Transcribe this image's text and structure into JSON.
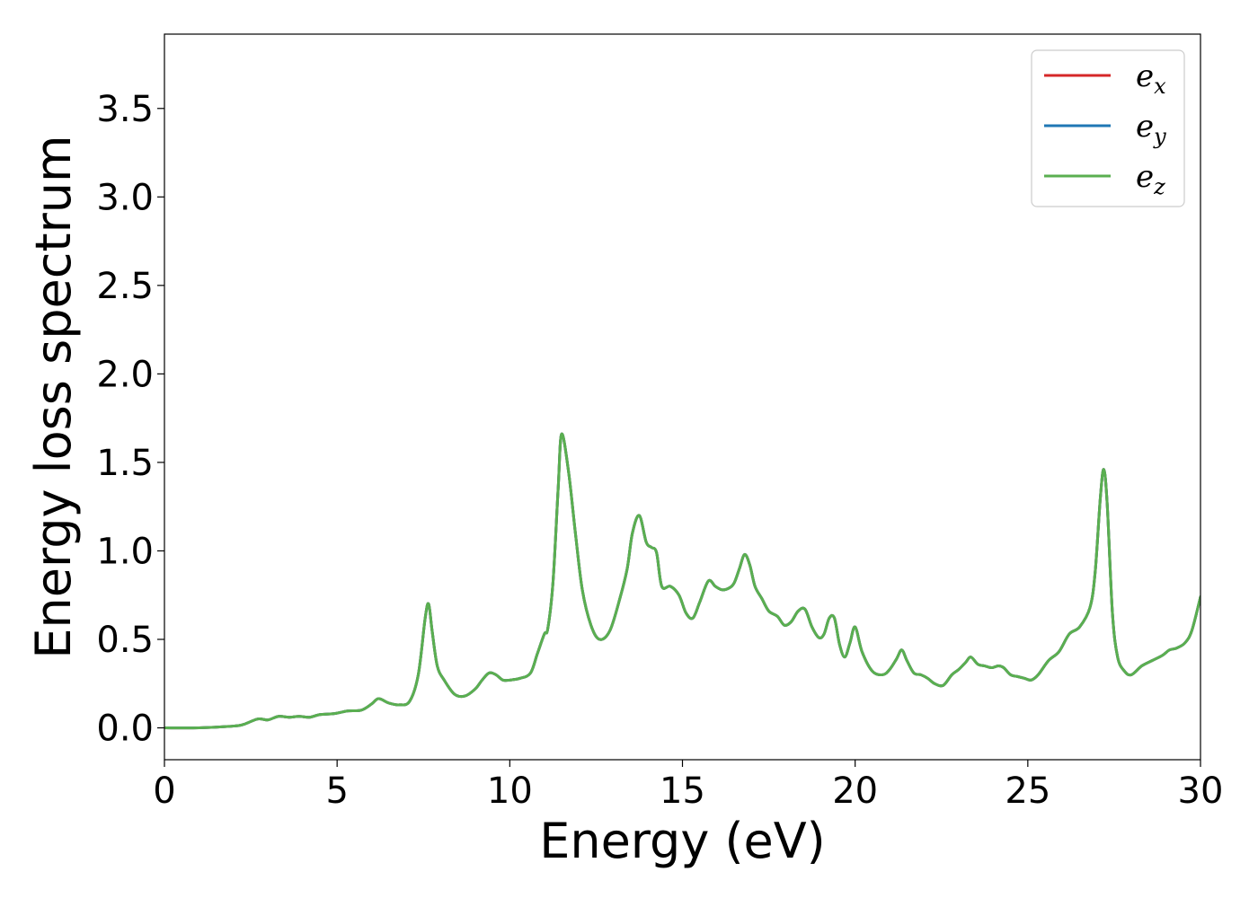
{
  "chart_data": {
    "type": "line",
    "title": "",
    "xlabel": "Energy (eV)",
    "ylabel": "Energy loss spectrum",
    "xlim": [
      0,
      30
    ],
    "ylim": [
      -0.18,
      3.92
    ],
    "xticks": [
      "0",
      "5",
      "10",
      "15",
      "20",
      "25",
      "30"
    ],
    "yticks": [
      "0.0",
      "0.5",
      "1.0",
      "1.5",
      "2.0",
      "2.5",
      "3.0",
      "3.5"
    ],
    "grid": false,
    "legend_position": "top-right",
    "series": [
      {
        "name": "e_x",
        "base": "e",
        "sub": "x",
        "color": "#d62728",
        "x": [
          0,
          1,
          2,
          2.3,
          2.7,
          3.0,
          3.3,
          3.6,
          3.9,
          4.2,
          4.5,
          4.9,
          5.3,
          5.7,
          6.0,
          6.2,
          6.5,
          6.8,
          7.1,
          7.35,
          7.55,
          7.65,
          7.75,
          7.9,
          8.1,
          8.4,
          8.7,
          9.0,
          9.2,
          9.4,
          9.6,
          9.8,
          10.0,
          10.3,
          10.6,
          10.8,
          11.0,
          11.1,
          11.25,
          11.4,
          11.5,
          11.7,
          11.9,
          12.1,
          12.35,
          12.6,
          12.9,
          13.2,
          13.4,
          13.55,
          13.75,
          13.95,
          14.1,
          14.25,
          14.4,
          14.65,
          14.9,
          15.1,
          15.3,
          15.5,
          15.75,
          15.95,
          16.15,
          16.35,
          16.5,
          16.65,
          16.8,
          16.95,
          17.1,
          17.3,
          17.5,
          17.75,
          17.95,
          18.15,
          18.35,
          18.55,
          18.75,
          18.95,
          19.1,
          19.25,
          19.4,
          19.55,
          19.7,
          19.85,
          20.0,
          20.2,
          20.5,
          20.8,
          21.0,
          21.2,
          21.35,
          21.5,
          21.7,
          21.9,
          22.1,
          22.3,
          22.55,
          22.8,
          23.0,
          23.2,
          23.35,
          23.55,
          23.75,
          23.95,
          24.15,
          24.3,
          24.5,
          24.7,
          24.9,
          25.1,
          25.3,
          25.6,
          25.9,
          26.2,
          26.5,
          26.8,
          26.95,
          27.1,
          27.2,
          27.3,
          27.45,
          27.6,
          27.8,
          28.0,
          28.3,
          28.6,
          28.9,
          29.1,
          29.3,
          29.55,
          29.75,
          30.0
        ],
        "y": [
          0,
          0,
          0.01,
          0.02,
          0.05,
          0.045,
          0.065,
          0.06,
          0.065,
          0.06,
          0.075,
          0.08,
          0.095,
          0.1,
          0.135,
          0.165,
          0.14,
          0.13,
          0.15,
          0.3,
          0.62,
          0.7,
          0.55,
          0.35,
          0.27,
          0.19,
          0.18,
          0.22,
          0.27,
          0.31,
          0.3,
          0.27,
          0.27,
          0.28,
          0.31,
          0.42,
          0.53,
          0.56,
          0.82,
          1.35,
          1.66,
          1.45,
          1.1,
          0.78,
          0.58,
          0.5,
          0.55,
          0.74,
          0.9,
          1.1,
          1.2,
          1.05,
          1.02,
          0.99,
          0.8,
          0.8,
          0.75,
          0.65,
          0.62,
          0.71,
          0.83,
          0.8,
          0.78,
          0.79,
          0.82,
          0.9,
          0.98,
          0.92,
          0.8,
          0.73,
          0.66,
          0.63,
          0.58,
          0.6,
          0.66,
          0.67,
          0.57,
          0.51,
          0.53,
          0.62,
          0.62,
          0.47,
          0.4,
          0.48,
          0.57,
          0.43,
          0.32,
          0.3,
          0.33,
          0.39,
          0.44,
          0.38,
          0.31,
          0.3,
          0.28,
          0.25,
          0.24,
          0.3,
          0.33,
          0.37,
          0.4,
          0.36,
          0.35,
          0.34,
          0.35,
          0.34,
          0.3,
          0.29,
          0.28,
          0.27,
          0.3,
          0.38,
          0.43,
          0.53,
          0.57,
          0.68,
          0.88,
          1.3,
          1.46,
          1.26,
          0.65,
          0.4,
          0.32,
          0.3,
          0.35,
          0.38,
          0.41,
          0.44,
          0.45,
          0.48,
          0.55,
          0.74
        ]
      },
      {
        "name": "e_y",
        "base": "e",
        "sub": "y",
        "color": "#1f77b4",
        "x": [
          0,
          1,
          2,
          2.3,
          2.7,
          3.0,
          3.3,
          3.6,
          3.9,
          4.2,
          4.5,
          4.9,
          5.3,
          5.7,
          6.0,
          6.2,
          6.5,
          6.8,
          7.1,
          7.35,
          7.55,
          7.65,
          7.75,
          7.9,
          8.1,
          8.4,
          8.7,
          9.0,
          9.2,
          9.4,
          9.6,
          9.8,
          10.0,
          10.3,
          10.6,
          10.8,
          11.0,
          11.1,
          11.25,
          11.4,
          11.5,
          11.7,
          11.9,
          12.1,
          12.35,
          12.6,
          12.9,
          13.2,
          13.4,
          13.55,
          13.75,
          13.95,
          14.1,
          14.25,
          14.4,
          14.65,
          14.9,
          15.1,
          15.3,
          15.5,
          15.75,
          15.95,
          16.15,
          16.35,
          16.5,
          16.65,
          16.8,
          16.95,
          17.1,
          17.3,
          17.5,
          17.75,
          17.95,
          18.15,
          18.35,
          18.55,
          18.75,
          18.95,
          19.1,
          19.25,
          19.4,
          19.55,
          19.7,
          19.85,
          20.0,
          20.2,
          20.5,
          20.8,
          21.0,
          21.2,
          21.35,
          21.5,
          21.7,
          21.9,
          22.1,
          22.3,
          22.55,
          22.8,
          23.0,
          23.2,
          23.35,
          23.55,
          23.75,
          23.95,
          24.15,
          24.3,
          24.5,
          24.7,
          24.9,
          25.1,
          25.3,
          25.6,
          25.9,
          26.2,
          26.5,
          26.8,
          26.95,
          27.1,
          27.2,
          27.3,
          27.45,
          27.6,
          27.8,
          28.0,
          28.3,
          28.6,
          28.9,
          29.1,
          29.3,
          29.55,
          29.75,
          30.0
        ],
        "y": [
          0,
          0,
          0.01,
          0.02,
          0.05,
          0.045,
          0.065,
          0.06,
          0.065,
          0.06,
          0.075,
          0.08,
          0.095,
          0.1,
          0.135,
          0.165,
          0.14,
          0.13,
          0.15,
          0.3,
          0.62,
          0.7,
          0.55,
          0.35,
          0.27,
          0.19,
          0.18,
          0.22,
          0.27,
          0.31,
          0.3,
          0.27,
          0.27,
          0.28,
          0.31,
          0.42,
          0.53,
          0.56,
          0.82,
          1.35,
          1.66,
          1.45,
          1.1,
          0.78,
          0.58,
          0.5,
          0.55,
          0.74,
          0.9,
          1.1,
          1.2,
          1.05,
          1.02,
          0.99,
          0.8,
          0.8,
          0.75,
          0.65,
          0.62,
          0.71,
          0.83,
          0.8,
          0.78,
          0.79,
          0.82,
          0.9,
          0.98,
          0.92,
          0.8,
          0.73,
          0.66,
          0.63,
          0.58,
          0.6,
          0.66,
          0.67,
          0.57,
          0.51,
          0.53,
          0.62,
          0.62,
          0.47,
          0.4,
          0.48,
          0.57,
          0.43,
          0.32,
          0.3,
          0.33,
          0.39,
          0.44,
          0.38,
          0.31,
          0.3,
          0.28,
          0.25,
          0.24,
          0.3,
          0.33,
          0.37,
          0.4,
          0.36,
          0.35,
          0.34,
          0.35,
          0.34,
          0.3,
          0.29,
          0.28,
          0.27,
          0.3,
          0.38,
          0.43,
          0.53,
          0.57,
          0.68,
          0.88,
          1.3,
          1.46,
          1.26,
          0.65,
          0.4,
          0.32,
          0.3,
          0.35,
          0.38,
          0.41,
          0.44,
          0.45,
          0.48,
          0.55,
          0.74
        ]
      },
      {
        "name": "e_z",
        "base": "e",
        "sub": "z",
        "color": "#5aaf50",
        "x": [
          0,
          1,
          2,
          2.3,
          2.7,
          3.0,
          3.3,
          3.6,
          3.9,
          4.2,
          4.5,
          4.9,
          5.3,
          5.7,
          6.0,
          6.2,
          6.5,
          6.8,
          7.1,
          7.35,
          7.55,
          7.65,
          7.75,
          7.9,
          8.1,
          8.4,
          8.7,
          9.0,
          9.2,
          9.4,
          9.6,
          9.8,
          10.0,
          10.3,
          10.6,
          10.8,
          11.0,
          11.1,
          11.25,
          11.4,
          11.5,
          11.7,
          11.9,
          12.1,
          12.35,
          12.6,
          12.9,
          13.2,
          13.4,
          13.55,
          13.75,
          13.95,
          14.1,
          14.25,
          14.4,
          14.65,
          14.9,
          15.1,
          15.3,
          15.5,
          15.75,
          15.95,
          16.15,
          16.35,
          16.5,
          16.65,
          16.8,
          16.95,
          17.1,
          17.3,
          17.5,
          17.75,
          17.95,
          18.15,
          18.35,
          18.55,
          18.75,
          18.95,
          19.1,
          19.25,
          19.4,
          19.55,
          19.7,
          19.85,
          20.0,
          20.2,
          20.5,
          20.8,
          21.0,
          21.2,
          21.35,
          21.5,
          21.7,
          21.9,
          22.1,
          22.3,
          22.55,
          22.8,
          23.0,
          23.2,
          23.35,
          23.55,
          23.75,
          23.95,
          24.15,
          24.3,
          24.5,
          24.7,
          24.9,
          25.1,
          25.3,
          25.6,
          25.9,
          26.2,
          26.5,
          26.8,
          26.95,
          27.1,
          27.2,
          27.3,
          27.45,
          27.6,
          27.8,
          28.0,
          28.3,
          28.6,
          28.9,
          29.1,
          29.3,
          29.55,
          29.75,
          30.0
        ],
        "y": [
          0,
          0,
          0.01,
          0.02,
          0.05,
          0.045,
          0.065,
          0.06,
          0.065,
          0.06,
          0.075,
          0.08,
          0.095,
          0.1,
          0.135,
          0.165,
          0.14,
          0.13,
          0.15,
          0.3,
          0.62,
          0.7,
          0.55,
          0.35,
          0.27,
          0.19,
          0.18,
          0.22,
          0.27,
          0.31,
          0.3,
          0.27,
          0.27,
          0.28,
          0.31,
          0.42,
          0.53,
          0.56,
          0.82,
          1.35,
          1.66,
          1.45,
          1.1,
          0.78,
          0.58,
          0.5,
          0.55,
          0.74,
          0.9,
          1.1,
          1.2,
          1.05,
          1.02,
          0.99,
          0.8,
          0.8,
          0.75,
          0.65,
          0.62,
          0.71,
          0.83,
          0.8,
          0.78,
          0.79,
          0.82,
          0.9,
          0.98,
          0.92,
          0.8,
          0.73,
          0.66,
          0.63,
          0.58,
          0.6,
          0.66,
          0.67,
          0.57,
          0.51,
          0.53,
          0.62,
          0.62,
          0.47,
          0.4,
          0.48,
          0.57,
          0.43,
          0.32,
          0.3,
          0.33,
          0.39,
          0.44,
          0.38,
          0.31,
          0.3,
          0.28,
          0.25,
          0.24,
          0.3,
          0.33,
          0.37,
          0.4,
          0.36,
          0.35,
          0.34,
          0.35,
          0.34,
          0.3,
          0.29,
          0.28,
          0.27,
          0.3,
          0.38,
          0.43,
          0.53,
          0.57,
          0.68,
          0.88,
          1.3,
          1.46,
          1.26,
          0.65,
          0.4,
          0.32,
          0.3,
          0.35,
          0.38,
          0.41,
          0.44,
          0.45,
          0.48,
          0.55,
          0.74
        ]
      }
    ]
  }
}
